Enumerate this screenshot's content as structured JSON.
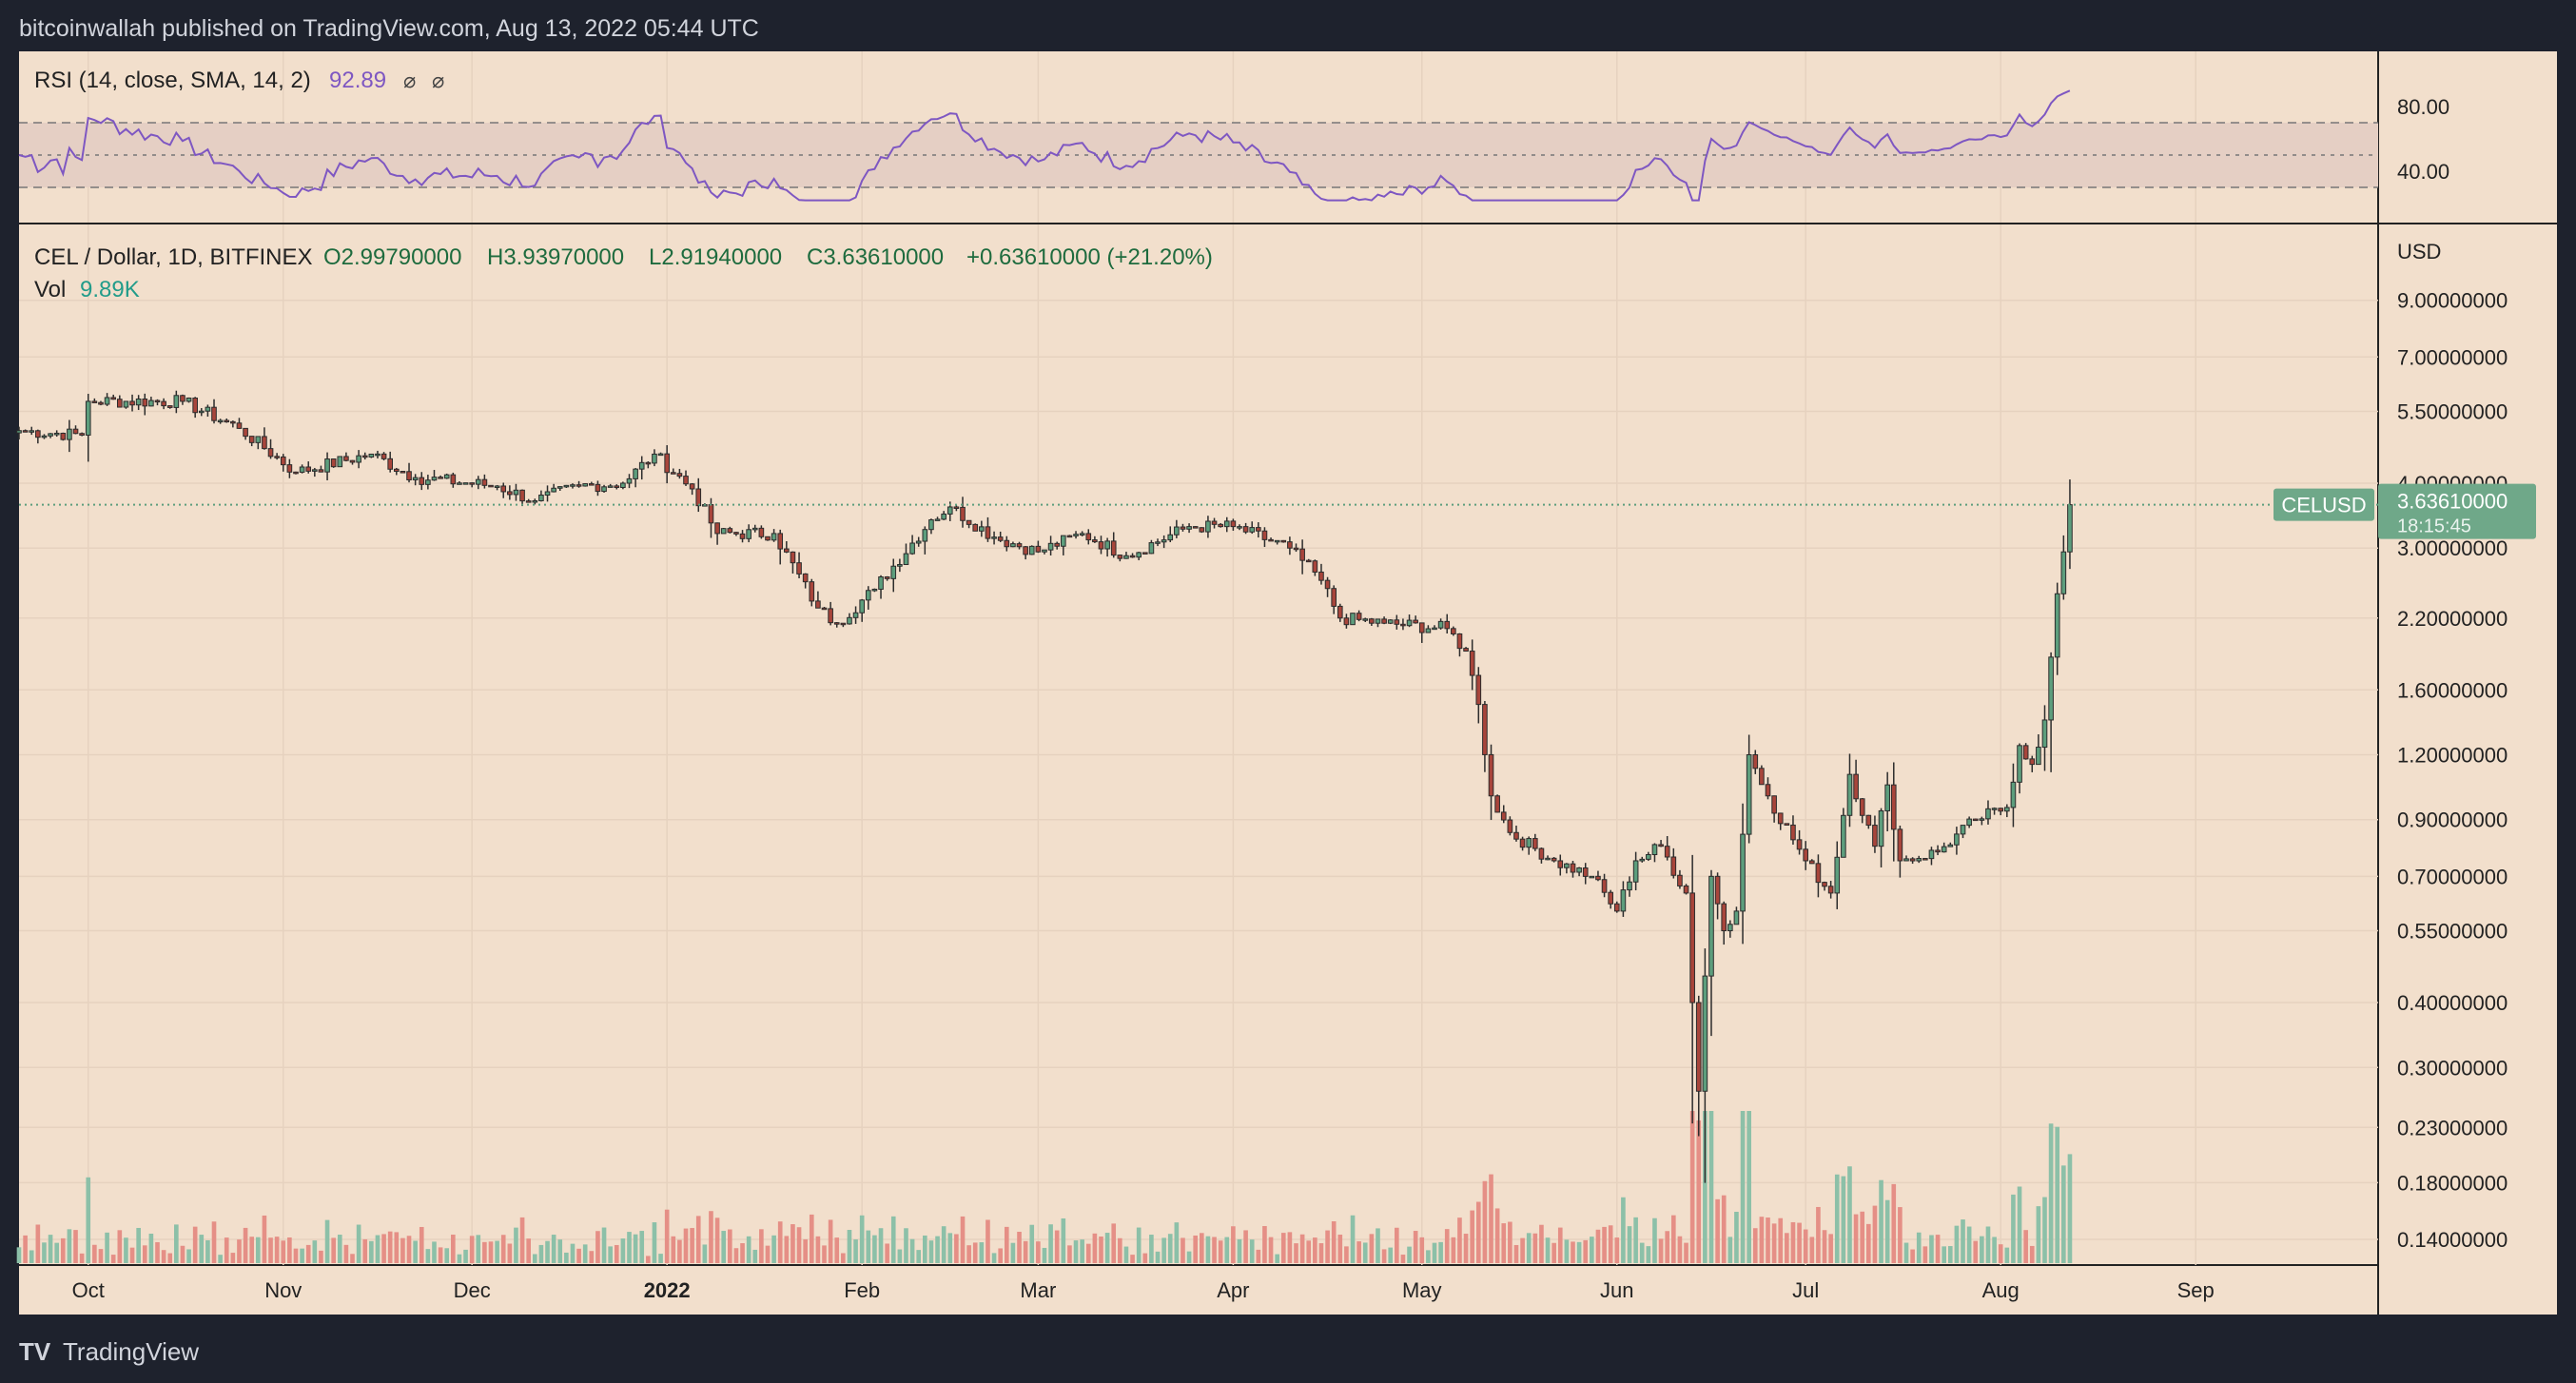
{
  "header": {
    "published": "bitcoinwallah published on TradingView.com, Aug 13, 2022 05:44 UTC"
  },
  "footer": {
    "brand": "TradingView",
    "logo_text": "TV"
  },
  "colors": {
    "background": "#1e222d",
    "panel": "#f2dfcc",
    "up": "#5d9e7d",
    "down": "#a8453b",
    "up_volume": "#8cc0a8",
    "down_volume": "#e58f86",
    "rsi_line": "#7e57c2",
    "rsi_band": "#e5cfc4",
    "price_tag": "#6fa889",
    "text": "#222222",
    "green_text": "#1e6b3e",
    "vol_value_text": "#229c8a",
    "rsi_value_text": "#7e57c2"
  },
  "rsi_panel": {
    "title": "RSI (14, close, SMA, 14, 2)",
    "value": "92.89",
    "icon_1": "⌀",
    "icon_2": "⌀",
    "ticks": [
      "80.00",
      "40.00"
    ]
  },
  "legend": {
    "symbol": "CEL / Dollar, 1D, BITFINEX",
    "open": "O2.99790000",
    "high": "H3.93970000",
    "low": "L2.91940000",
    "close": "C3.63610000",
    "change": "+0.63610000 (+21.20%)",
    "vol_label": "Vol",
    "vol_value": "9.89K"
  },
  "price_tag": {
    "symbol": "CELUSD",
    "price": "3.63610000",
    "countdown": "18:15:45"
  },
  "chart_data": {
    "type": "candlestick",
    "currency_label": "USD",
    "scale": "log",
    "y_ticks": [
      {
        "value": 9.0,
        "label": "9.00000000"
      },
      {
        "value": 7.0,
        "label": "7.00000000"
      },
      {
        "value": 5.5,
        "label": "5.50000000"
      },
      {
        "value": 4.0,
        "label": "4.00000000"
      },
      {
        "value": 3.0,
        "label": "3.00000000"
      },
      {
        "value": 2.2,
        "label": "2.20000000"
      },
      {
        "value": 1.6,
        "label": "1.60000000"
      },
      {
        "value": 1.2,
        "label": "1.20000000"
      },
      {
        "value": 0.9,
        "label": "0.90000000"
      },
      {
        "value": 0.7,
        "label": "0.70000000"
      },
      {
        "value": 0.55,
        "label": "0.55000000"
      },
      {
        "value": 0.4,
        "label": "0.40000000"
      },
      {
        "value": 0.3,
        "label": "0.30000000"
      },
      {
        "value": 0.23,
        "label": "0.23000000"
      },
      {
        "value": 0.18,
        "label": "0.18000000"
      },
      {
        "value": 0.14,
        "label": "0.14000000"
      }
    ],
    "x_ticks": [
      {
        "date": "2021-10-01",
        "label": "Oct"
      },
      {
        "date": "2021-11-01",
        "label": "Nov"
      },
      {
        "date": "2021-12-01",
        "label": "Dec"
      },
      {
        "date": "2022-01-01",
        "label": "2022",
        "bold": true
      },
      {
        "date": "2022-02-01",
        "label": "Feb"
      },
      {
        "date": "2022-03-01",
        "label": "Mar"
      },
      {
        "date": "2022-04-01",
        "label": "Apr"
      },
      {
        "date": "2022-05-01",
        "label": "May"
      },
      {
        "date": "2022-06-01",
        "label": "Jun"
      },
      {
        "date": "2022-07-01",
        "label": "Jul"
      },
      {
        "date": "2022-08-01",
        "label": "Aug"
      },
      {
        "date": "2022-09-01",
        "label": "Sep"
      }
    ],
    "x_range": [
      "2021-09-20",
      "2022-09-30"
    ],
    "last_price": 3.6361,
    "close_anchors": [
      {
        "date": "2021-09-20",
        "close": 5.05
      },
      {
        "date": "2021-09-30",
        "close": 4.95
      },
      {
        "date": "2021-10-01",
        "close": 5.75
      },
      {
        "date": "2021-10-16",
        "close": 5.75
      },
      {
        "date": "2021-10-25",
        "close": 5.1
      },
      {
        "date": "2021-11-03",
        "close": 4.2
      },
      {
        "date": "2021-11-15",
        "close": 4.55
      },
      {
        "date": "2021-11-22",
        "close": 4.1
      },
      {
        "date": "2021-12-05",
        "close": 3.95
      },
      {
        "date": "2021-12-11",
        "close": 3.7
      },
      {
        "date": "2021-12-18",
        "close": 3.95
      },
      {
        "date": "2021-12-25",
        "close": 4.0
      },
      {
        "date": "2021-12-30",
        "close": 4.55
      },
      {
        "date": "2022-01-05",
        "close": 3.9
      },
      {
        "date": "2022-01-09",
        "close": 3.2
      },
      {
        "date": "2022-01-18",
        "close": 3.2
      },
      {
        "date": "2022-01-25",
        "close": 2.3
      },
      {
        "date": "2022-01-28",
        "close": 2.15
      },
      {
        "date": "2022-02-03",
        "close": 2.5
      },
      {
        "date": "2022-02-12",
        "close": 3.4
      },
      {
        "date": "2022-02-15",
        "close": 3.6
      },
      {
        "date": "2022-02-22",
        "close": 3.15
      },
      {
        "date": "2022-03-01",
        "close": 2.95
      },
      {
        "date": "2022-03-08",
        "close": 3.2
      },
      {
        "date": "2022-03-15",
        "close": 2.9
      },
      {
        "date": "2022-03-25",
        "close": 3.3
      },
      {
        "date": "2022-04-01",
        "close": 3.3
      },
      {
        "date": "2022-04-10",
        "close": 3.0
      },
      {
        "date": "2022-04-15",
        "close": 2.6
      },
      {
        "date": "2022-04-18",
        "close": 2.2
      },
      {
        "date": "2022-04-25",
        "close": 2.15
      },
      {
        "date": "2022-05-05",
        "close": 2.1
      },
      {
        "date": "2022-05-08",
        "close": 1.9
      },
      {
        "date": "2022-05-10",
        "close": 1.5
      },
      {
        "date": "2022-05-12",
        "close": 1.0
      },
      {
        "date": "2022-05-15",
        "close": 0.85
      },
      {
        "date": "2022-05-22",
        "close": 0.75
      },
      {
        "date": "2022-05-28",
        "close": 0.7
      },
      {
        "date": "2022-06-01",
        "close": 0.6
      },
      {
        "date": "2022-06-04",
        "close": 0.75
      },
      {
        "date": "2022-06-08",
        "close": 0.8
      },
      {
        "date": "2022-06-12",
        "close": 0.65
      },
      {
        "date": "2022-06-13",
        "close": 0.4
      },
      {
        "date": "2022-06-14",
        "close": 0.27
      },
      {
        "date": "2022-06-15",
        "close": 0.45
      },
      {
        "date": "2022-06-16",
        "close": 0.7
      },
      {
        "date": "2022-06-18",
        "close": 0.55
      },
      {
        "date": "2022-06-20",
        "close": 0.6
      },
      {
        "date": "2022-06-22",
        "close": 1.2
      },
      {
        "date": "2022-06-25",
        "close": 1.0
      },
      {
        "date": "2022-07-01",
        "close": 0.75
      },
      {
        "date": "2022-07-05",
        "close": 0.65
      },
      {
        "date": "2022-07-08",
        "close": 1.1
      },
      {
        "date": "2022-07-12",
        "close": 0.8
      },
      {
        "date": "2022-07-14",
        "close": 1.05
      },
      {
        "date": "2022-07-16",
        "close": 0.75
      },
      {
        "date": "2022-07-22",
        "close": 0.78
      },
      {
        "date": "2022-07-28",
        "close": 0.9
      },
      {
        "date": "2022-08-02",
        "close": 0.95
      },
      {
        "date": "2022-08-04",
        "close": 1.25
      },
      {
        "date": "2022-08-06",
        "close": 1.15
      },
      {
        "date": "2022-08-08",
        "close": 1.4
      },
      {
        "date": "2022-08-09",
        "close": 1.85
      },
      {
        "date": "2022-08-10",
        "close": 2.45
      },
      {
        "date": "2022-08-11",
        "close": 2.95
      },
      {
        "date": "2022-08-12",
        "close": 3.6361
      }
    ]
  }
}
